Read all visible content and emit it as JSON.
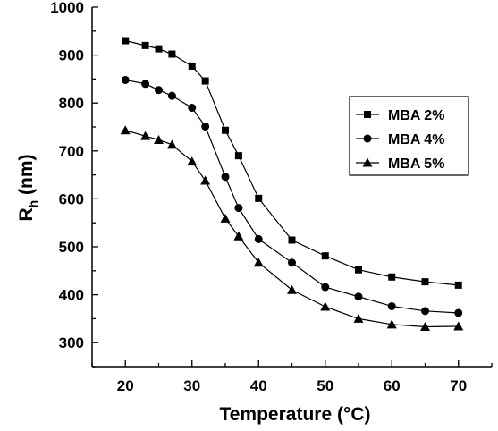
{
  "chart_data": {
    "type": "line",
    "xlabel": "Temperature (°C)",
    "ylabel_main": "R",
    "ylabel_sub": "h",
    "ylabel_unit": " (nm)",
    "xlim": [
      15,
      75
    ],
    "ylim": [
      250,
      1000
    ],
    "xticks": [
      20,
      30,
      40,
      50,
      60,
      70
    ],
    "yticks": [
      300,
      400,
      500,
      600,
      700,
      800,
      900,
      1000
    ],
    "legend_position": "top-right",
    "grid": false,
    "series": [
      {
        "name": "MBA 2%",
        "marker": "square",
        "x": [
          20,
          23,
          25,
          27,
          30,
          32,
          35,
          37,
          40,
          45,
          50,
          55,
          60,
          65,
          70
        ],
        "y": [
          930,
          920,
          913,
          902,
          877,
          846,
          743,
          690,
          601,
          514,
          481,
          452,
          437,
          427,
          420
        ]
      },
      {
        "name": "MBA 4%",
        "marker": "circle",
        "x": [
          20,
          23,
          25,
          27,
          30,
          32,
          35,
          37,
          40,
          45,
          50,
          55,
          60,
          65,
          70
        ],
        "y": [
          848,
          840,
          827,
          815,
          790,
          751,
          646,
          581,
          516,
          467,
          416,
          396,
          376,
          366,
          362
        ]
      },
      {
        "name": "MBA 5%",
        "marker": "triangle",
        "x": [
          20,
          23,
          25,
          27,
          30,
          32,
          35,
          37,
          40,
          45,
          50,
          55,
          60,
          65,
          70
        ],
        "y": [
          743,
          731,
          723,
          713,
          678,
          638,
          559,
          522,
          467,
          410,
          375,
          350,
          338,
          333,
          334
        ]
      }
    ]
  }
}
